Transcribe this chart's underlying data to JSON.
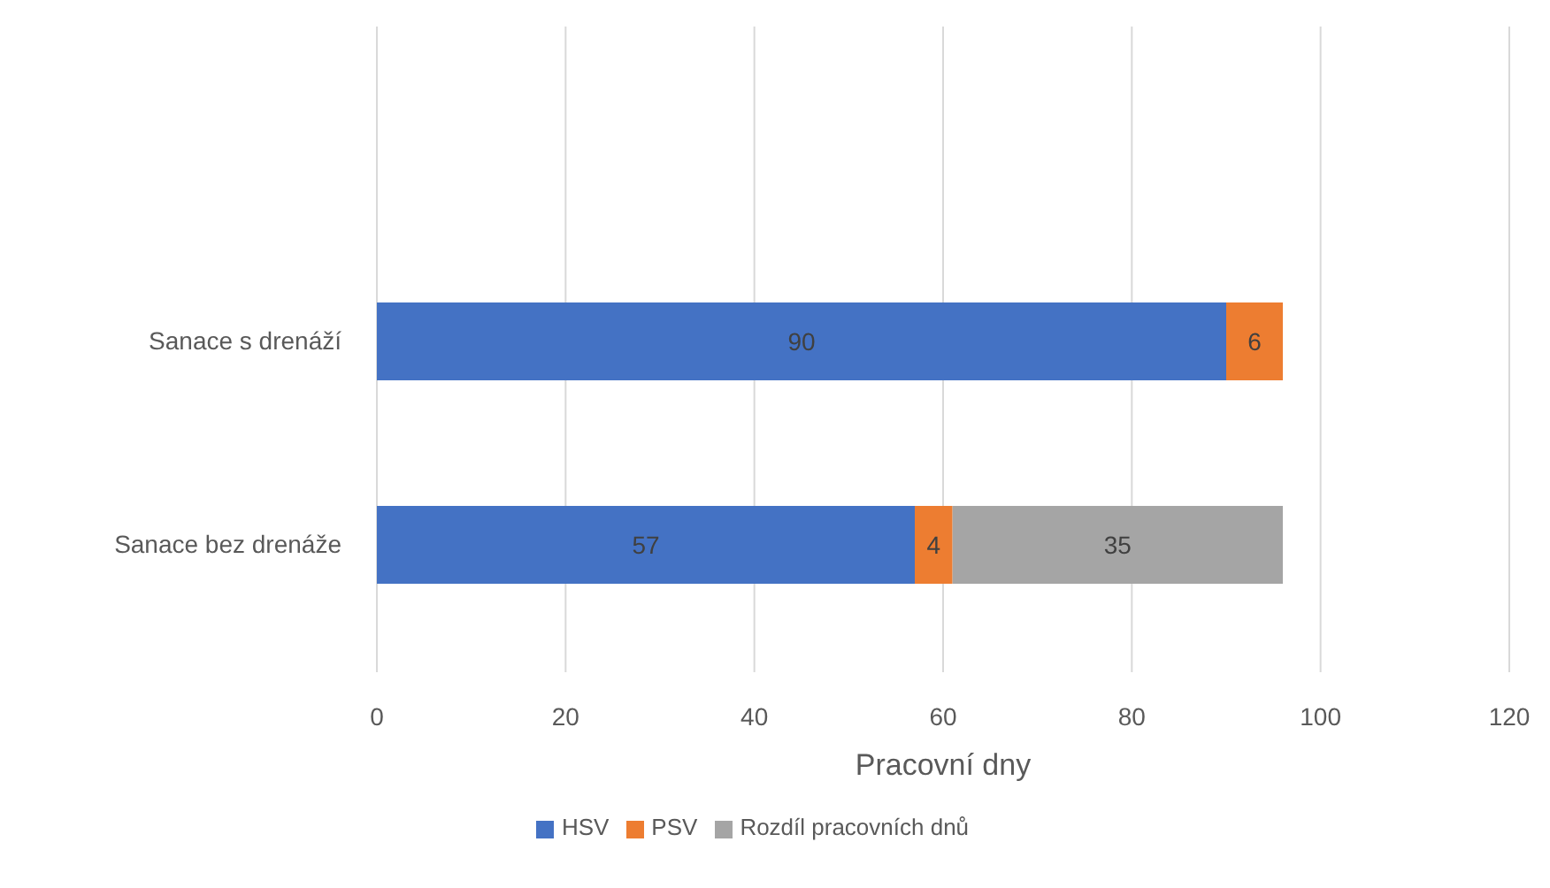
{
  "chart_data": {
    "type": "bar",
    "orientation": "horizontal",
    "stacked": true,
    "categories": [
      "Sanace s drenáží",
      "Sanace bez drenáže"
    ],
    "series": [
      {
        "name": "HSV",
        "color": "#4472c4",
        "values": [
          90,
          57
        ]
      },
      {
        "name": "PSV",
        "color": "#ed7d31",
        "values": [
          6,
          4
        ]
      },
      {
        "name": "Rozdíl pracovních dnů",
        "color": "#a5a5a5",
        "values": [
          null,
          35
        ]
      }
    ],
    "xlabel": "Pracovní dny",
    "xlim": [
      0,
      120
    ],
    "xticks": [
      0,
      20,
      40,
      60,
      80,
      100,
      120
    ],
    "grid": "x",
    "legend": "bottom",
    "data_labels": true
  }
}
